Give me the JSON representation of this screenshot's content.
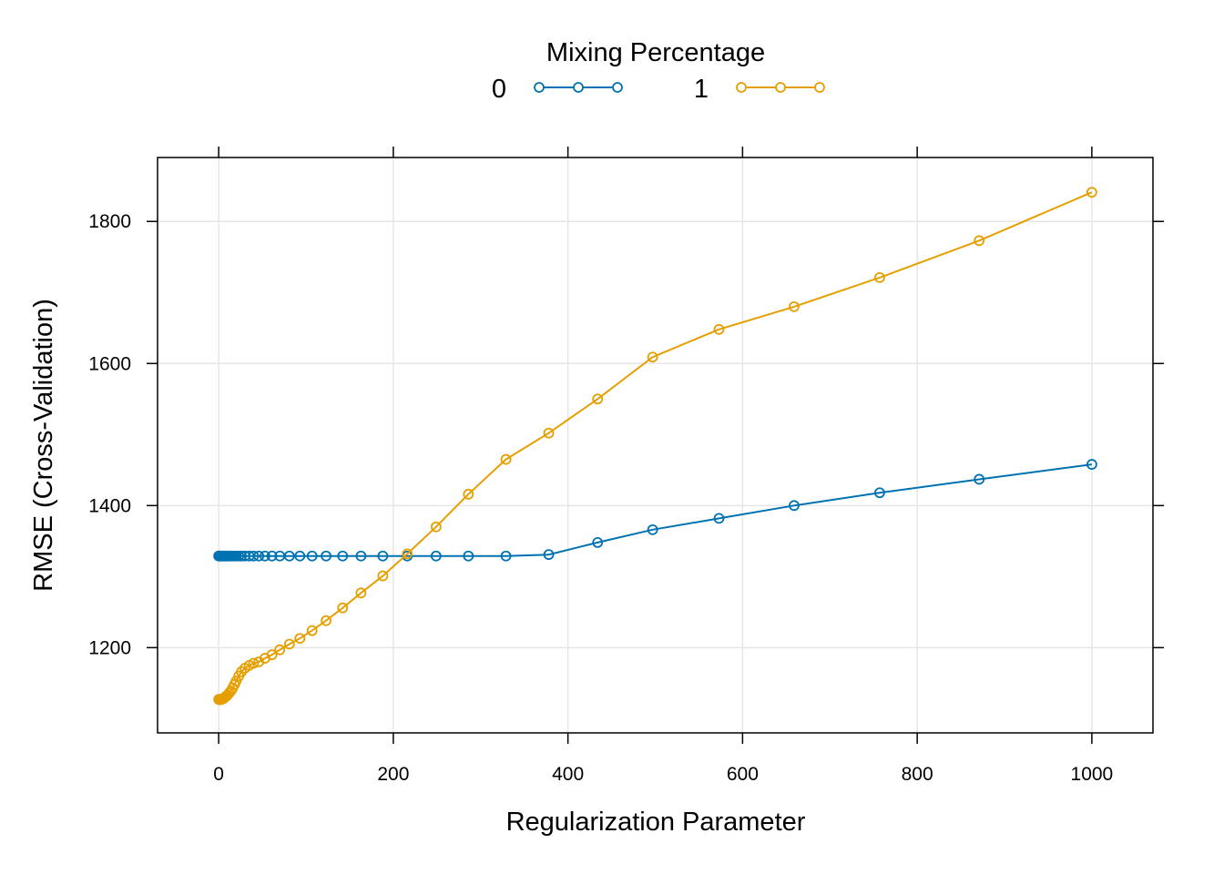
{
  "chart_data": {
    "type": "line",
    "xlabel": "Regularization Parameter",
    "ylabel": "RMSE (Cross-Validation)",
    "xlim": [
      -70,
      1070
    ],
    "ylim": [
      1080,
      1890
    ],
    "x_ticks": [
      0,
      200,
      400,
      600,
      800,
      1000
    ],
    "y_ticks": [
      1200,
      1400,
      1600,
      1800
    ],
    "grid": true,
    "legend": {
      "title": "Mixing Percentage",
      "placement": "top-center",
      "entries": [
        "0",
        "1"
      ]
    },
    "series": [
      {
        "name": "0",
        "color": "#0072B2",
        "x": [
          0,
          0.5,
          1,
          1.5,
          2,
          3,
          4,
          5,
          6,
          7,
          8,
          9,
          10,
          12,
          14,
          16,
          18,
          20,
          23,
          26,
          30,
          35,
          40,
          46,
          53,
          61,
          70,
          81,
          93,
          107,
          123,
          142,
          163,
          188,
          216,
          249,
          286,
          329,
          378,
          434,
          497,
          573,
          659,
          757,
          871,
          1000
        ],
        "values": [
          1329,
          1329,
          1329,
          1329,
          1329,
          1329,
          1329,
          1329,
          1329,
          1329,
          1329,
          1329,
          1329,
          1329,
          1329,
          1329,
          1329,
          1329,
          1329,
          1329,
          1329,
          1329,
          1329,
          1329,
          1329,
          1329,
          1329,
          1329,
          1329,
          1329,
          1329,
          1329,
          1329,
          1329,
          1329,
          1329,
          1329,
          1329,
          1331,
          1348,
          1366,
          1382,
          1400,
          1418,
          1437,
          1458
        ]
      },
      {
        "name": "1",
        "color": "#E69F00",
        "x": [
          0,
          0.5,
          1,
          1.5,
          2,
          3,
          4,
          5,
          6,
          7,
          8,
          9,
          10,
          12,
          14,
          16,
          18,
          20,
          23,
          26,
          30,
          35,
          40,
          46,
          53,
          61,
          70,
          81,
          93,
          107,
          123,
          142,
          163,
          188,
          216,
          249,
          286,
          329,
          378,
          434,
          497,
          573,
          659,
          757,
          871,
          1000
        ],
        "values": [
          1127,
          1127,
          1127,
          1127,
          1127,
          1127,
          1128,
          1128,
          1129,
          1130,
          1131,
          1132,
          1133,
          1136,
          1139,
          1143,
          1148,
          1153,
          1160,
          1166,
          1171,
          1175,
          1178,
          1180,
          1185,
          1190,
          1197,
          1205,
          1213,
          1224,
          1238,
          1256,
          1277,
          1301,
          1332,
          1370,
          1416,
          1465,
          1502,
          1550,
          1609,
          1648,
          1680,
          1721,
          1773,
          1841
        ]
      }
    ]
  }
}
